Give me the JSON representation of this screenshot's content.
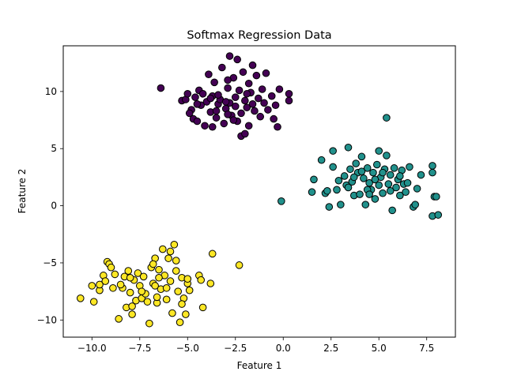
{
  "chart_data": {
    "type": "scatter",
    "title": "Softmax Regression Data",
    "xlabel": "Feature 1",
    "ylabel": "Feature 2",
    "xlim": [
      -11.5,
      9.0
    ],
    "ylim": [
      -11.5,
      14.0
    ],
    "xticks": [
      -10.0,
      -7.5,
      -5.0,
      -2.5,
      0.0,
      2.5,
      5.0,
      7.5
    ],
    "xtick_labels": [
      "−10.0",
      "−7.5",
      "−5.0",
      "−2.5",
      "0.0",
      "2.5",
      "5.0",
      "7.5"
    ],
    "yticks": [
      -10,
      -5,
      0,
      5,
      10
    ],
    "ytick_labels": [
      "−10",
      "−5",
      "0",
      "5",
      "10"
    ],
    "grid": false,
    "marker_edge_color": "#000000",
    "series": [
      {
        "color": "#440154",
        "points": [
          [
            -6.4,
            10.3
          ],
          [
            -5.3,
            9.2
          ],
          [
            -5.1,
            9.3
          ],
          [
            -4.8,
            8.4
          ],
          [
            -4.7,
            7.6
          ],
          [
            -4.6,
            9.5
          ],
          [
            -4.5,
            7.4
          ],
          [
            -4.4,
            10.1
          ],
          [
            -4.3,
            8.8
          ],
          [
            -4.2,
            9.8
          ],
          [
            -4.1,
            7.0
          ],
          [
            -4.0,
            9.1
          ],
          [
            -3.9,
            11.5
          ],
          [
            -3.8,
            8.2
          ],
          [
            -3.7,
            6.9
          ],
          [
            -3.7,
            9.6
          ],
          [
            -3.6,
            10.8
          ],
          [
            -3.5,
            7.7
          ],
          [
            -3.4,
            8.9
          ],
          [
            -3.3,
            9.3
          ],
          [
            -3.2,
            12.1
          ],
          [
            -3.1,
            7.2
          ],
          [
            -3.0,
            8.5
          ],
          [
            -2.9,
            10.3
          ],
          [
            -2.8,
            13.1
          ],
          [
            -2.8,
            9.0
          ],
          [
            -2.7,
            7.9
          ],
          [
            -2.6,
            11.2
          ],
          [
            -2.5,
            8.7
          ],
          [
            -2.5,
            9.5
          ],
          [
            -2.4,
            12.8
          ],
          [
            -2.4,
            7.4
          ],
          [
            -2.3,
            10.1
          ],
          [
            -2.2,
            8.1
          ],
          [
            -2.2,
            6.1
          ],
          [
            -2.1,
            11.7
          ],
          [
            -2.0,
            9.2
          ],
          [
            -2.0,
            6.3
          ],
          [
            -1.9,
            8.6
          ],
          [
            -1.8,
            10.7
          ],
          [
            -1.8,
            7.0
          ],
          [
            -1.7,
            9.9
          ],
          [
            -1.6,
            12.3
          ],
          [
            -1.5,
            8.3
          ],
          [
            -1.4,
            11.4
          ],
          [
            -1.3,
            9.4
          ],
          [
            -1.2,
            7.8
          ],
          [
            -1.1,
            10.2
          ],
          [
            -1.0,
            9.0
          ],
          [
            -0.9,
            11.6
          ],
          [
            -0.8,
            8.4
          ],
          [
            -0.6,
            9.6
          ],
          [
            -0.5,
            7.6
          ],
          [
            -0.4,
            8.8
          ],
          [
            -0.3,
            6.9
          ],
          [
            -0.2,
            10.2
          ],
          [
            0.3,
            9.8
          ],
          [
            0.3,
            9.2
          ],
          [
            -2.9,
            8.0
          ],
          [
            -3.4,
            9.7
          ],
          [
            -4.9,
            8.1
          ],
          [
            -5.0,
            9.8
          ],
          [
            -4.5,
            8.9
          ],
          [
            -3.0,
            9.1
          ],
          [
            -1.6,
            8.9
          ],
          [
            -2.6,
            7.5
          ],
          [
            -3.5,
            8.3
          ],
          [
            -1.9,
            9.8
          ],
          [
            -2.9,
            11.0
          ],
          [
            -3.8,
            9.4
          ]
        ]
      },
      {
        "color": "#21918c",
        "points": [
          [
            -0.1,
            0.4
          ],
          [
            1.5,
            1.2
          ],
          [
            1.6,
            2.3
          ],
          [
            2.0,
            4.0
          ],
          [
            2.2,
            1.1
          ],
          [
            2.3,
            1.3
          ],
          [
            2.4,
            -0.1
          ],
          [
            2.6,
            4.8
          ],
          [
            2.6,
            3.4
          ],
          [
            2.8,
            1.4
          ],
          [
            3.0,
            0.1
          ],
          [
            3.2,
            2.6
          ],
          [
            3.3,
            1.8
          ],
          [
            3.4,
            5.1
          ],
          [
            3.5,
            3.2
          ],
          [
            3.6,
            2.1
          ],
          [
            3.7,
            0.9
          ],
          [
            3.8,
            3.7
          ],
          [
            3.9,
            2.9
          ],
          [
            4.0,
            1.0
          ],
          [
            4.1,
            4.3
          ],
          [
            4.2,
            2.4
          ],
          [
            4.3,
            0.1
          ],
          [
            4.4,
            3.3
          ],
          [
            4.5,
            2.0
          ],
          [
            4.6,
            1.4
          ],
          [
            4.7,
            2.9
          ],
          [
            4.8,
            0.6
          ],
          [
            4.9,
            3.6
          ],
          [
            5.0,
            1.8
          ],
          [
            5.0,
            4.8
          ],
          [
            5.1,
            2.5
          ],
          [
            5.2,
            1.1
          ],
          [
            5.3,
            3.2
          ],
          [
            5.4,
            7.7
          ],
          [
            5.4,
            4.4
          ],
          [
            5.5,
            1.9
          ],
          [
            5.6,
            2.7
          ],
          [
            5.7,
            -0.4
          ],
          [
            5.8,
            3.3
          ],
          [
            5.9,
            1.6
          ],
          [
            6.0,
            2.3
          ],
          [
            6.1,
            0.9
          ],
          [
            6.2,
            3.1
          ],
          [
            6.3,
            1.9
          ],
          [
            6.4,
            1.2
          ],
          [
            6.5,
            2.0
          ],
          [
            6.6,
            3.4
          ],
          [
            6.8,
            -0.1
          ],
          [
            6.9,
            0.1
          ],
          [
            7.0,
            1.5
          ],
          [
            7.2,
            2.7
          ],
          [
            7.8,
            3.5
          ],
          [
            7.8,
            2.9
          ],
          [
            7.8,
            -0.9
          ],
          [
            7.9,
            0.8
          ],
          [
            8.0,
            0.8
          ],
          [
            8.1,
            -0.8
          ],
          [
            4.4,
            1.4
          ],
          [
            3.7,
            2.5
          ],
          [
            4.8,
            2.3
          ],
          [
            5.6,
            1.3
          ],
          [
            4.1,
            3.0
          ],
          [
            3.4,
            1.6
          ],
          [
            5.2,
            2.9
          ],
          [
            4.5,
            1.0
          ],
          [
            6.1,
            2.6
          ],
          [
            2.9,
            2.2
          ]
        ]
      },
      {
        "color": "#fde725",
        "points": [
          [
            -10.6,
            -8.1
          ],
          [
            -10.0,
            -7.0
          ],
          [
            -9.9,
            -8.4
          ],
          [
            -9.6,
            -7.4
          ],
          [
            -9.4,
            -6.1
          ],
          [
            -9.3,
            -6.6
          ],
          [
            -9.2,
            -4.9
          ],
          [
            -9.1,
            -5.1
          ],
          [
            -9.0,
            -5.4
          ],
          [
            -8.9,
            -7.2
          ],
          [
            -8.8,
            -6.0
          ],
          [
            -8.6,
            -9.9
          ],
          [
            -8.4,
            -7.2
          ],
          [
            -8.3,
            -6.2
          ],
          [
            -8.2,
            -8.9
          ],
          [
            -8.1,
            -5.7
          ],
          [
            -8.0,
            -7.6
          ],
          [
            -7.9,
            -9.5
          ],
          [
            -7.8,
            -6.5
          ],
          [
            -7.7,
            -8.3
          ],
          [
            -7.6,
            -5.9
          ],
          [
            -7.5,
            -7.0
          ],
          [
            -7.4,
            -8.1
          ],
          [
            -7.3,
            -6.2
          ],
          [
            -7.2,
            -7.7
          ],
          [
            -7.0,
            -10.3
          ],
          [
            -6.9,
            -5.4
          ],
          [
            -6.8,
            -6.8
          ],
          [
            -6.7,
            -4.6
          ],
          [
            -6.6,
            -8.5
          ],
          [
            -6.5,
            -5.6
          ],
          [
            -6.4,
            -7.3
          ],
          [
            -6.3,
            -3.8
          ],
          [
            -6.2,
            -6.1
          ],
          [
            -6.1,
            -8.2
          ],
          [
            -6.0,
            -4.6
          ],
          [
            -5.9,
            -6.6
          ],
          [
            -5.8,
            -9.4
          ],
          [
            -5.7,
            -3.4
          ],
          [
            -5.6,
            -5.7
          ],
          [
            -5.5,
            -7.5
          ],
          [
            -5.4,
            -10.2
          ],
          [
            -5.3,
            -6.3
          ],
          [
            -5.2,
            -8.1
          ],
          [
            -5.1,
            -9.5
          ],
          [
            -5.0,
            -6.8
          ],
          [
            -4.9,
            -7.4
          ],
          [
            -4.4,
            -6.1
          ],
          [
            -4.3,
            -6.5
          ],
          [
            -4.2,
            -8.9
          ],
          [
            -3.8,
            -6.8
          ],
          [
            -3.7,
            -4.2
          ],
          [
            -2.3,
            -5.2
          ],
          [
            -7.9,
            -8.8
          ],
          [
            -7.1,
            -8.4
          ],
          [
            -6.7,
            -7.0
          ],
          [
            -6.5,
            -6.3
          ],
          [
            -8.5,
            -6.9
          ],
          [
            -9.6,
            -6.9
          ],
          [
            -7.4,
            -7.5
          ],
          [
            -6.1,
            -7.2
          ],
          [
            -5.6,
            -4.8
          ],
          [
            -5.9,
            -4.0
          ],
          [
            -6.6,
            -8.0
          ],
          [
            -5.3,
            -8.6
          ],
          [
            -8.0,
            -6.3
          ],
          [
            -6.8,
            -5.1
          ],
          [
            -5.0,
            -6.4
          ]
        ]
      }
    ]
  }
}
